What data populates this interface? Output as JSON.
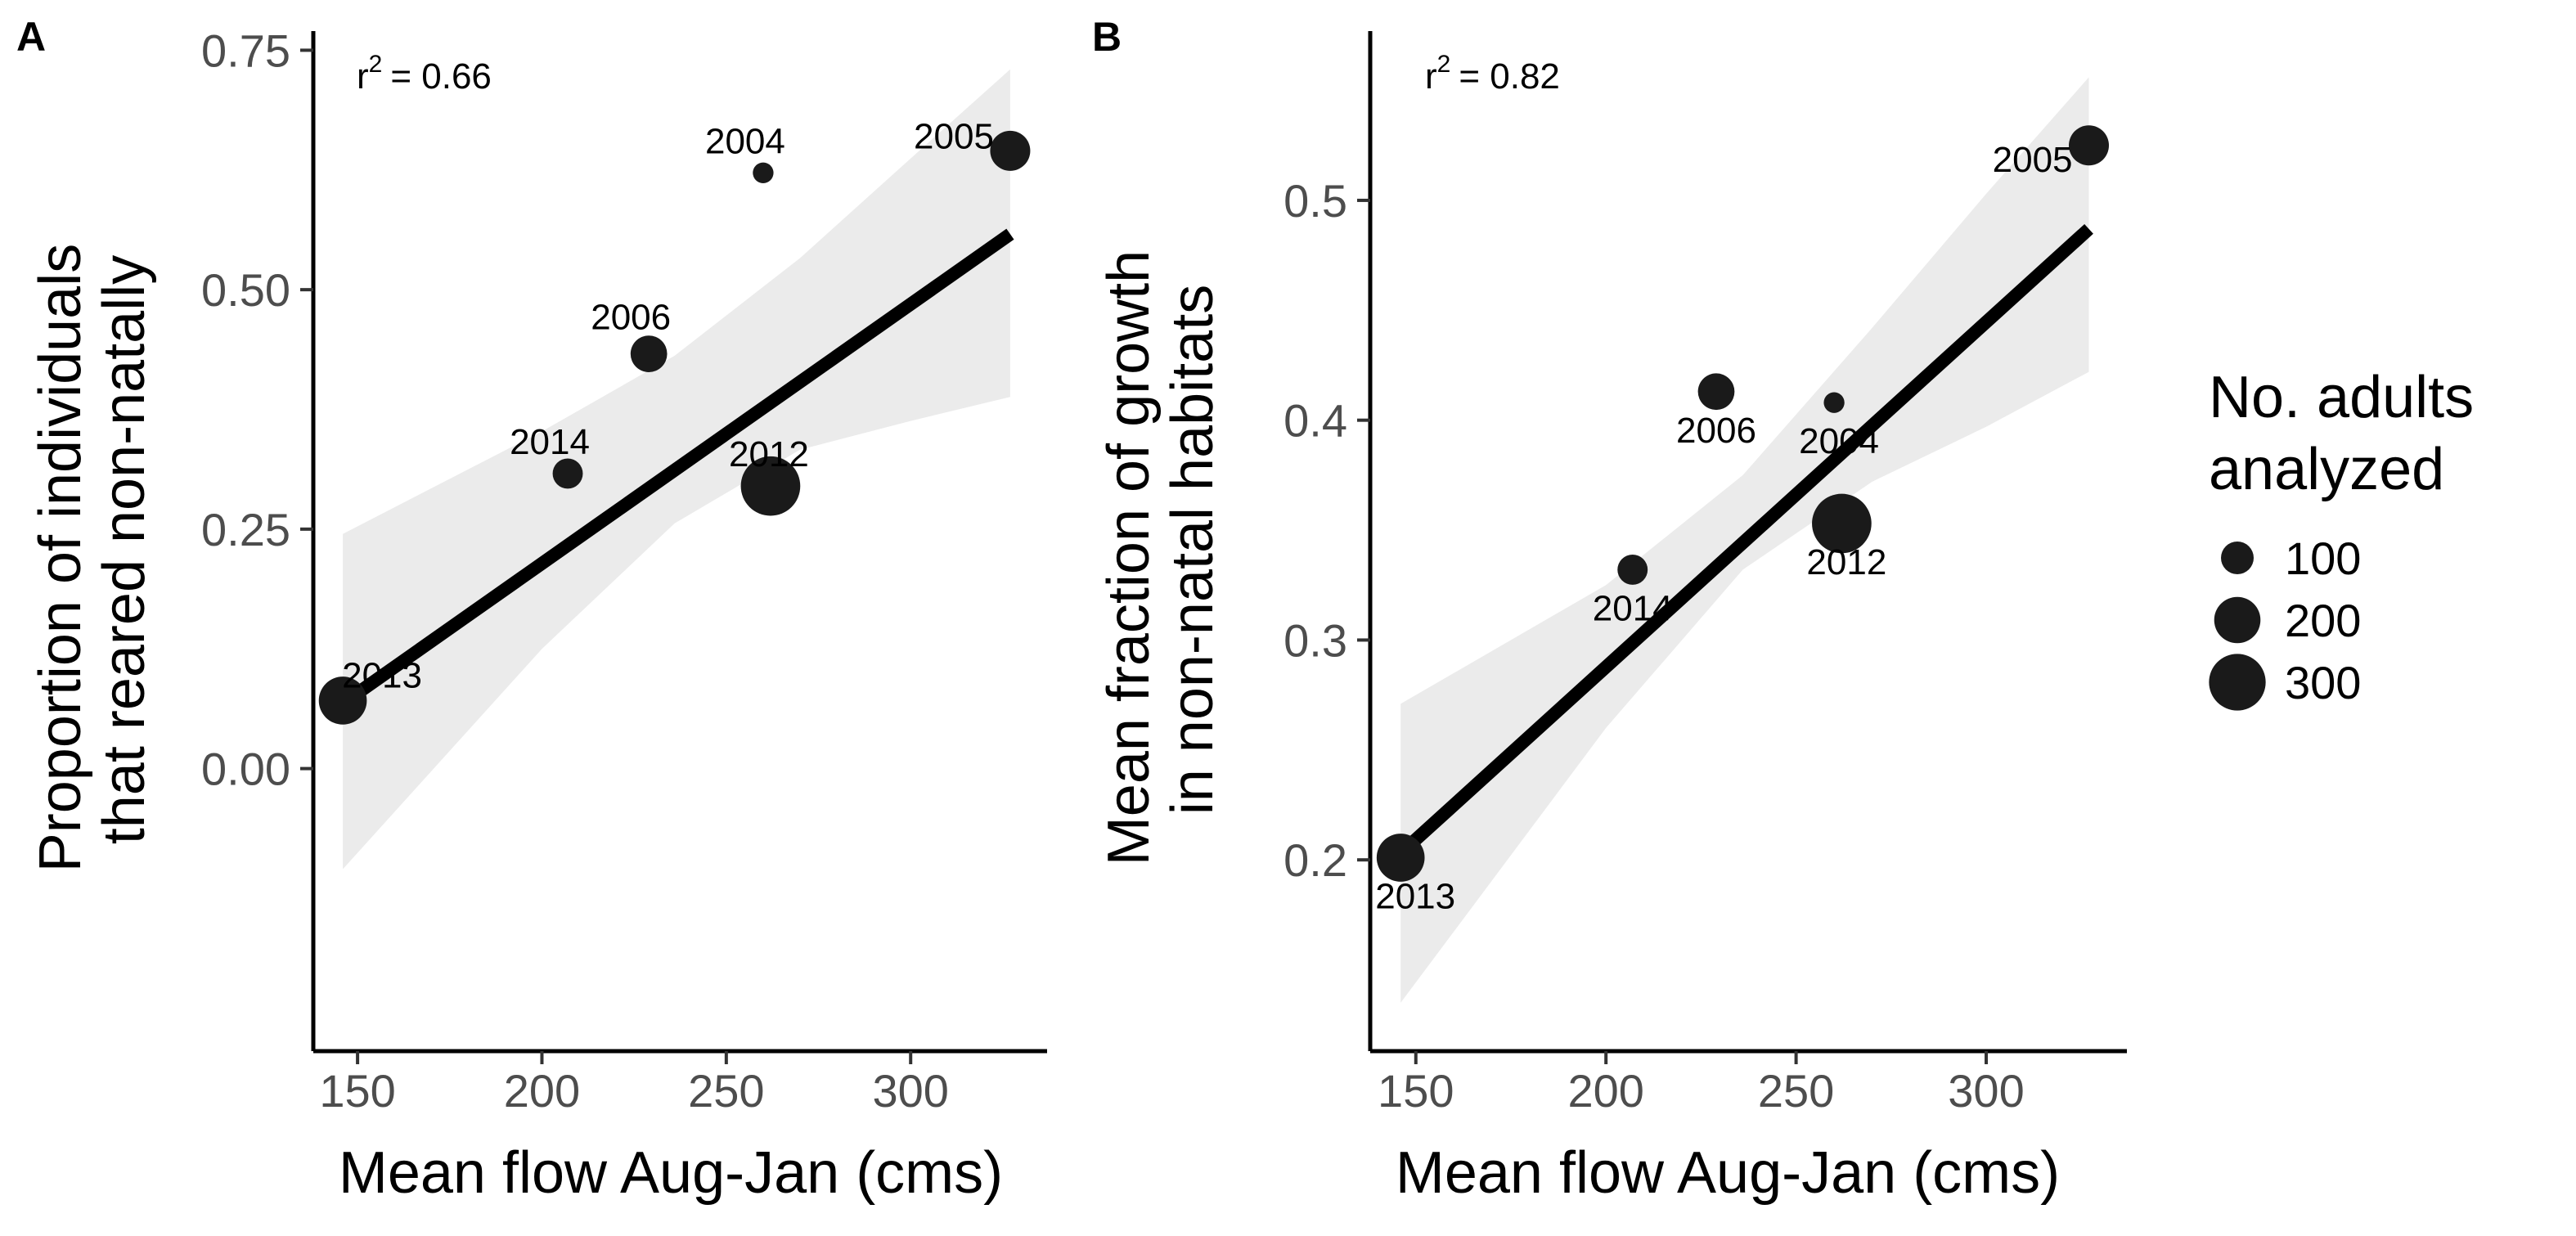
{
  "chart_data": [
    {
      "panel": "A",
      "type": "scatter",
      "xlabel": "Mean flow Aug-Jan (cms)",
      "ylabel": [
        "Proportion of individuals",
        "that reared non-natally"
      ],
      "xlim": [
        138,
        337
      ],
      "ylim": [
        -0.295,
        0.77
      ],
      "xticks": [
        150,
        200,
        250,
        300
      ],
      "xtick_labels": [
        "150",
        "200",
        "250",
        "300"
      ],
      "yticks": [
        0,
        0.25,
        0.5,
        0.75
      ],
      "ytick_labels": [
        "0.00",
        "0.25",
        "0.50",
        "0.75"
      ],
      "r2_text": "= 0.66",
      "r2_base": "r",
      "r2_sup": "2",
      "points": [
        {
          "label": "2004",
          "x": 260,
          "y": 0.622,
          "n": 40
        },
        {
          "label": "2005",
          "x": 327,
          "y": 0.645,
          "n": 150
        },
        {
          "label": "2006",
          "x": 229,
          "y": 0.433,
          "n": 125
        },
        {
          "label": "2014",
          "x": 207,
          "y": 0.308,
          "n": 85
        },
        {
          "label": "2012",
          "x": 262,
          "y": 0.295,
          "n": 330
        },
        {
          "label": "2013",
          "x": 146,
          "y": 0.071,
          "n": 215
        }
      ],
      "fit": {
        "x": [
          146,
          327
        ],
        "y": [
          0.068,
          0.558
        ]
      },
      "ci_band": [
        {
          "x": 146,
          "lo": -0.105,
          "hi": 0.245
        },
        {
          "x": 200,
          "lo": 0.125,
          "hi": 0.352
        },
        {
          "x": 236,
          "lo": 0.256,
          "hi": 0.431
        },
        {
          "x": 270,
          "lo": 0.333,
          "hi": 0.533
        },
        {
          "x": 300,
          "lo": 0.363,
          "hi": 0.637
        },
        {
          "x": 327,
          "lo": 0.388,
          "hi": 0.73
        }
      ]
    },
    {
      "panel": "B",
      "type": "scatter",
      "xlabel": "Mean flow Aug-Jan (cms)",
      "ylabel": [
        "Mean fraction of growth",
        "in non-natal habitats"
      ],
      "xlim": [
        138,
        337
      ],
      "ylim": [
        0.113,
        0.577
      ],
      "xticks": [
        150,
        200,
        250,
        300
      ],
      "xtick_labels": [
        "150",
        "200",
        "250",
        "300"
      ],
      "yticks": [
        0.2,
        0.3,
        0.4,
        0.5
      ],
      "ytick_labels": [
        "0.2",
        "0.3",
        "0.4",
        "0.5"
      ],
      "r2_text": "= 0.82",
      "r2_base": "r",
      "r2_sup": "2",
      "points": [
        {
          "label": "2005",
          "x": 327,
          "y": 0.525,
          "n": 150
        },
        {
          "label": "2006",
          "x": 229,
          "y": 0.413,
          "n": 125
        },
        {
          "label": "2004",
          "x": 260,
          "y": 0.408,
          "n": 40
        },
        {
          "label": "2012",
          "x": 262,
          "y": 0.353,
          "n": 330
        },
        {
          "label": "2014",
          "x": 207,
          "y": 0.332,
          "n": 85
        },
        {
          "label": "2013",
          "x": 146,
          "y": 0.201,
          "n": 215
        }
      ],
      "fit": {
        "x": [
          146,
          327
        ],
        "y": [
          0.203,
          0.487
        ]
      },
      "ci_band": [
        {
          "x": 146,
          "lo": 0.135,
          "hi": 0.271
        },
        {
          "x": 200,
          "lo": 0.26,
          "hi": 0.325
        },
        {
          "x": 236,
          "lo": 0.332,
          "hi": 0.375
        },
        {
          "x": 270,
          "lo": 0.372,
          "hi": 0.442
        },
        {
          "x": 300,
          "lo": 0.397,
          "hi": 0.503
        },
        {
          "x": 327,
          "lo": 0.422,
          "hi": 0.556
        }
      ]
    }
  ],
  "legend": {
    "title": [
      "No. adults",
      "analyzed"
    ],
    "items": [
      {
        "label": "100",
        "n": 100
      },
      {
        "label": "200",
        "n": 200
      },
      {
        "label": "300",
        "n": 300
      }
    ]
  },
  "colors": {
    "point": "#1a1a1a",
    "fit": "#000000",
    "band": "#ebebeb"
  }
}
